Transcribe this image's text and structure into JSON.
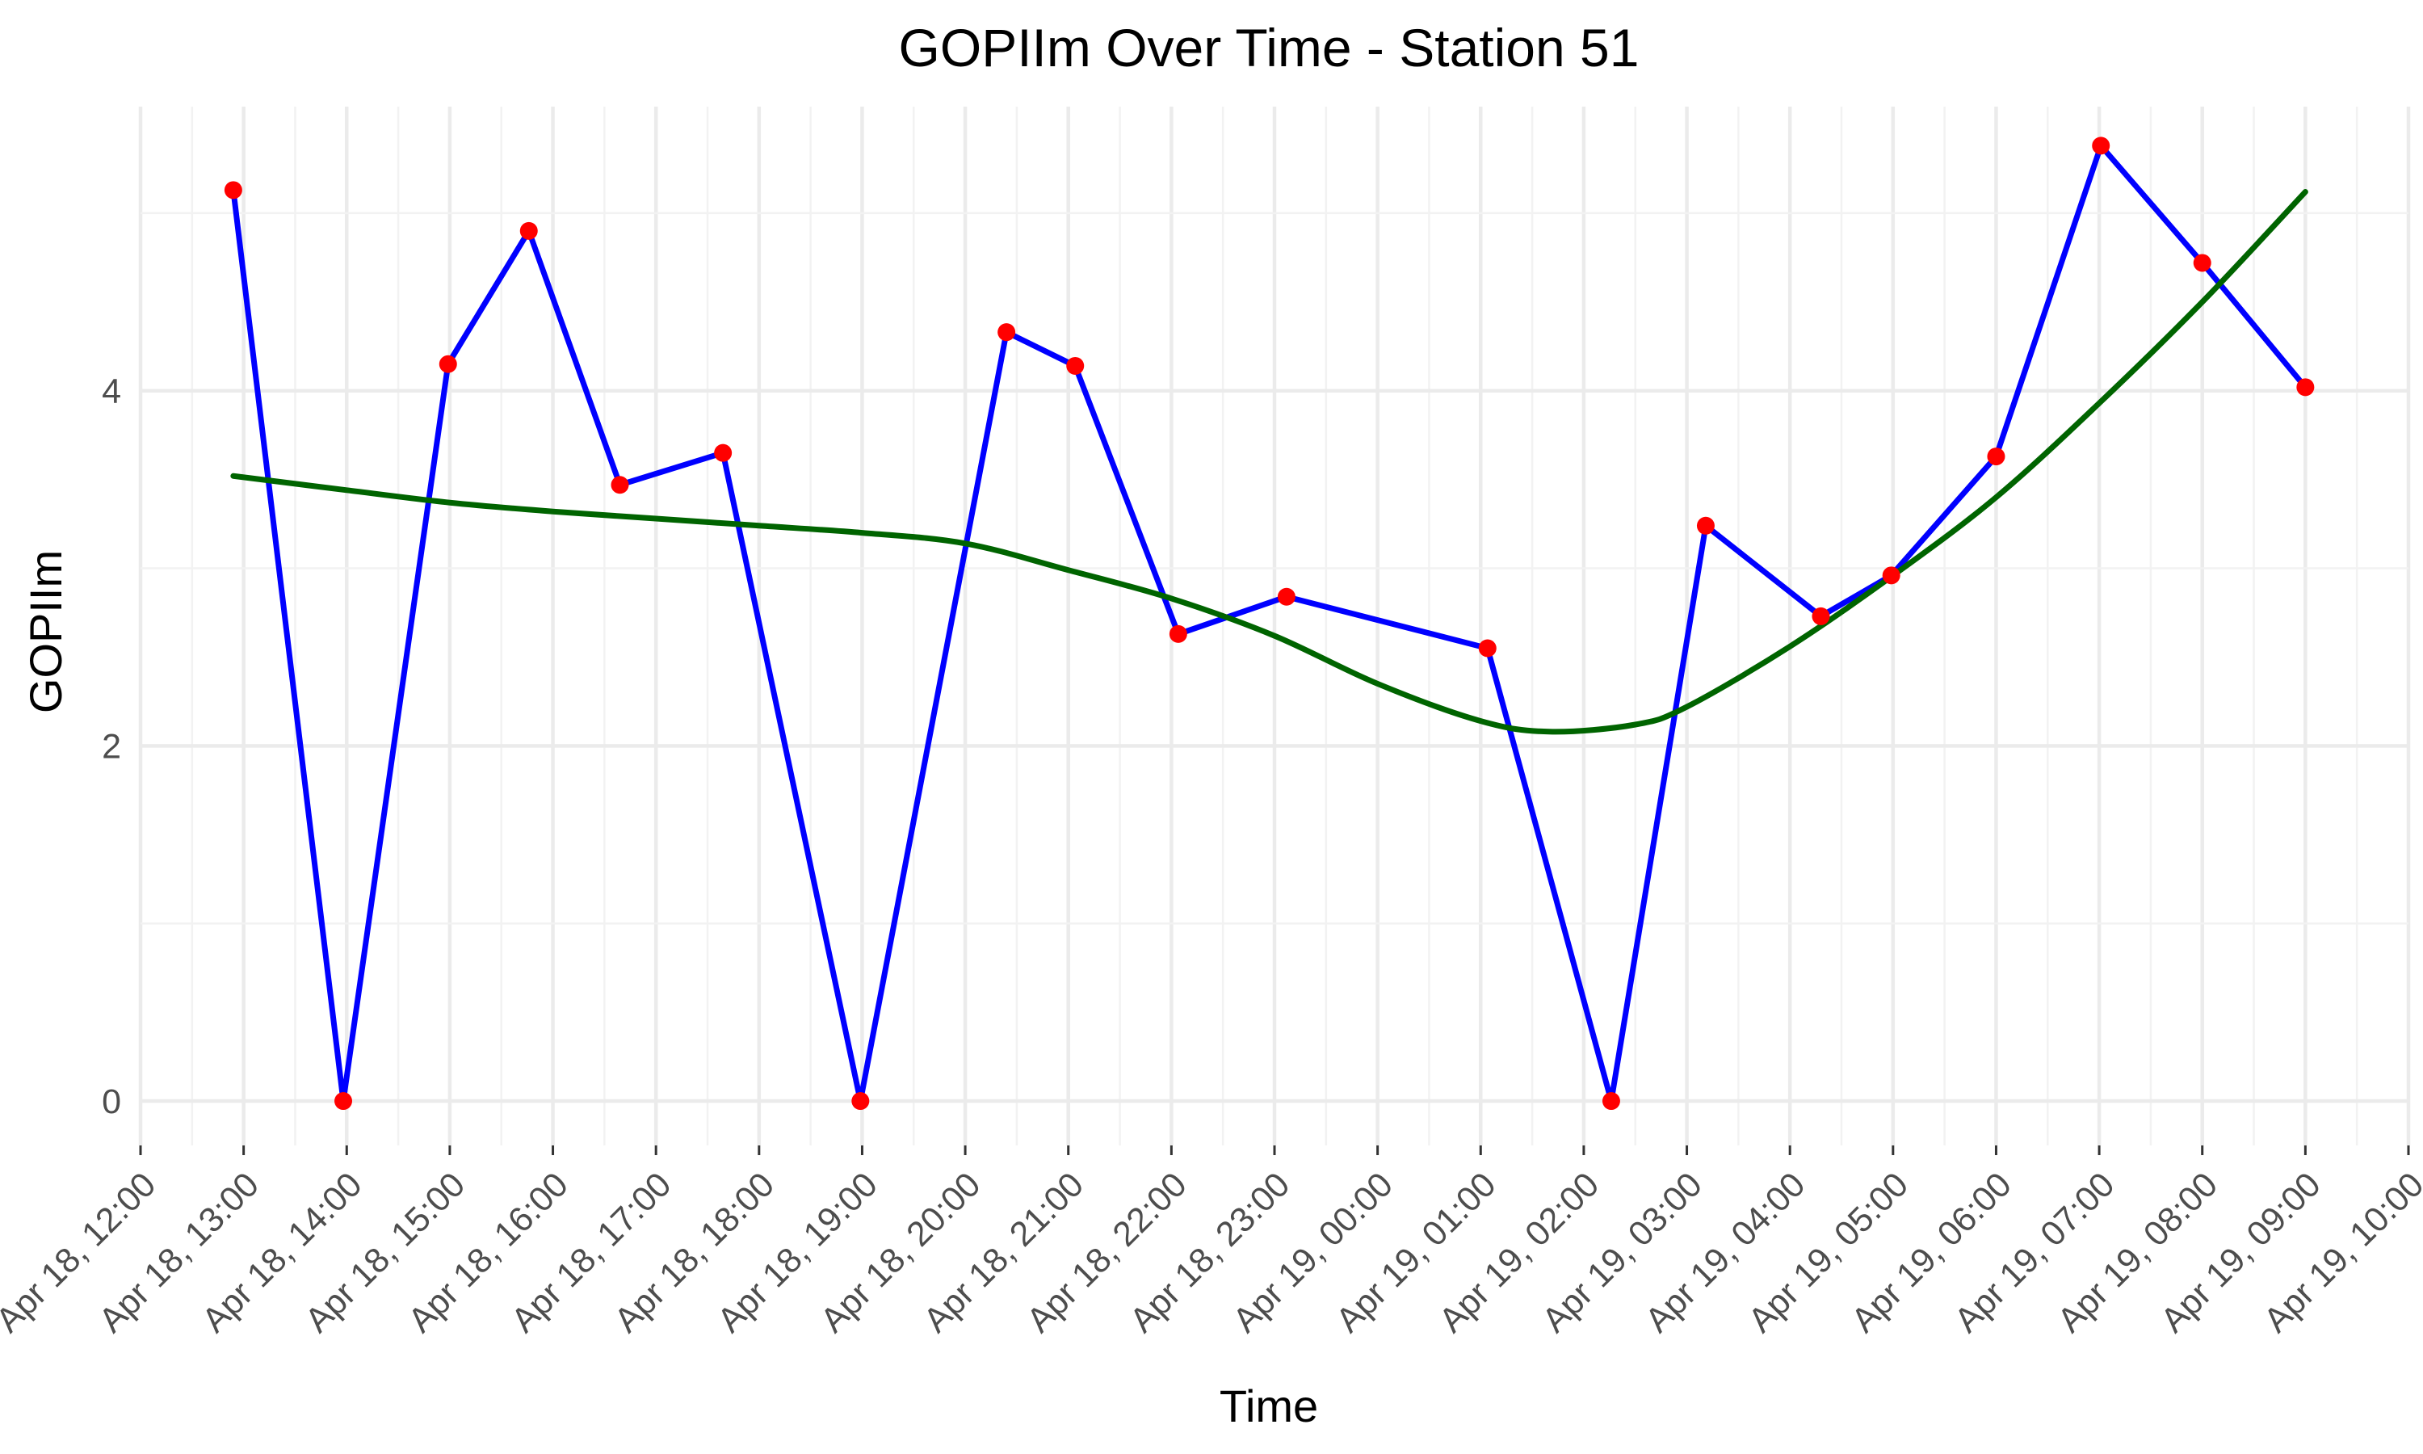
{
  "chart_data": {
    "type": "line",
    "title": "GOPIIm Over Time - Station 51",
    "xlabel": "Time",
    "ylabel": "GOPIIm",
    "x_axis_type": "datetime",
    "xlim": [
      "2024-04-18 12:00",
      "2024-04-19 10:00"
    ],
    "ylim": [
      -0.25,
      5.6
    ],
    "y_ticks": [
      0,
      2,
      4
    ],
    "x_ticks": [
      {
        "t": "2024-04-18 12:00",
        "label": "Apr 18, 12:00"
      },
      {
        "t": "2024-04-18 13:00",
        "label": "Apr 18, 13:00"
      },
      {
        "t": "2024-04-18 14:00",
        "label": "Apr 18, 14:00"
      },
      {
        "t": "2024-04-18 15:00",
        "label": "Apr 18, 15:00"
      },
      {
        "t": "2024-04-18 16:00",
        "label": "Apr 18, 16:00"
      },
      {
        "t": "2024-04-18 17:00",
        "label": "Apr 18, 17:00"
      },
      {
        "t": "2024-04-18 18:00",
        "label": "Apr 18, 18:00"
      },
      {
        "t": "2024-04-18 19:00",
        "label": "Apr 18, 19:00"
      },
      {
        "t": "2024-04-18 20:00",
        "label": "Apr 18, 20:00"
      },
      {
        "t": "2024-04-18 21:00",
        "label": "Apr 18, 21:00"
      },
      {
        "t": "2024-04-18 22:00",
        "label": "Apr 18, 22:00"
      },
      {
        "t": "2024-04-18 23:00",
        "label": "Apr 18, 23:00"
      },
      {
        "t": "2024-04-19 00:00",
        "label": "Apr 19, 00:00"
      },
      {
        "t": "2024-04-19 01:00",
        "label": "Apr 19, 01:00"
      },
      {
        "t": "2024-04-19 02:00",
        "label": "Apr 19, 02:00"
      },
      {
        "t": "2024-04-19 03:00",
        "label": "Apr 19, 03:00"
      },
      {
        "t": "2024-04-19 04:00",
        "label": "Apr 19, 04:00"
      },
      {
        "t": "2024-04-19 05:00",
        "label": "Apr 19, 05:00"
      },
      {
        "t": "2024-04-19 06:00",
        "label": "Apr 19, 06:00"
      },
      {
        "t": "2024-04-19 07:00",
        "label": "Apr 19, 07:00"
      },
      {
        "t": "2024-04-19 08:00",
        "label": "Apr 19, 08:00"
      },
      {
        "t": "2024-04-19 09:00",
        "label": "Apr 19, 09:00"
      },
      {
        "t": "2024-04-19 10:00",
        "label": "Apr 19, 10:00"
      }
    ],
    "grid": true,
    "legend": "none",
    "series": [
      {
        "kind": "line-with-points",
        "line_color": "#0000ff",
        "point_color": "#ff0000",
        "points": [
          {
            "x": "2024-04-18 12:54",
            "y": 5.13
          },
          {
            "x": "2024-04-18 13:58",
            "y": 0.0
          },
          {
            "x": "2024-04-18 14:59",
            "y": 4.15
          },
          {
            "x": "2024-04-18 15:46",
            "y": 4.9
          },
          {
            "x": "2024-04-18 16:39",
            "y": 3.47
          },
          {
            "x": "2024-04-18 17:39",
            "y": 3.65
          },
          {
            "x": "2024-04-18 18:59",
            "y": 0.0
          },
          {
            "x": "2024-04-18 20:24",
            "y": 4.33
          },
          {
            "x": "2024-04-18 21:04",
            "y": 4.14
          },
          {
            "x": "2024-04-18 22:04",
            "y": 2.63
          },
          {
            "x": "2024-04-18 23:07",
            "y": 2.84
          },
          {
            "x": "2024-04-19 01:04",
            "y": 2.55
          },
          {
            "x": "2024-04-19 02:16",
            "y": 0.0
          },
          {
            "x": "2024-04-19 03:11",
            "y": 3.24
          },
          {
            "x": "2024-04-19 04:18",
            "y": 2.73
          },
          {
            "x": "2024-04-19 04:59",
            "y": 2.96
          },
          {
            "x": "2024-04-19 06:00",
            "y": 3.63
          },
          {
            "x": "2024-04-19 07:01",
            "y": 5.38
          },
          {
            "x": "2024-04-19 08:00",
            "y": 4.72
          },
          {
            "x": "2024-04-19 09:00",
            "y": 4.02
          }
        ]
      },
      {
        "kind": "smooth-trend",
        "line_color": "#006400",
        "points": [
          {
            "x": "2024-04-18 12:54",
            "y": 3.52
          },
          {
            "x": "2024-04-18 14:00",
            "y": 3.44
          },
          {
            "x": "2024-04-18 15:00",
            "y": 3.37
          },
          {
            "x": "2024-04-18 16:00",
            "y": 3.32
          },
          {
            "x": "2024-04-18 17:00",
            "y": 3.28
          },
          {
            "x": "2024-04-18 18:00",
            "y": 3.24
          },
          {
            "x": "2024-04-18 19:00",
            "y": 3.2
          },
          {
            "x": "2024-04-18 20:00",
            "y": 3.14
          },
          {
            "x": "2024-04-18 21:00",
            "y": 2.99
          },
          {
            "x": "2024-04-18 22:00",
            "y": 2.83
          },
          {
            "x": "2024-04-18 23:00",
            "y": 2.62
          },
          {
            "x": "2024-04-19 00:00",
            "y": 2.35
          },
          {
            "x": "2024-04-19 01:00",
            "y": 2.14
          },
          {
            "x": "2024-04-19 01:40",
            "y": 2.08
          },
          {
            "x": "2024-04-19 02:30",
            "y": 2.12
          },
          {
            "x": "2024-04-19 03:00",
            "y": 2.22
          },
          {
            "x": "2024-04-19 04:00",
            "y": 2.56
          },
          {
            "x": "2024-04-19 05:00",
            "y": 2.96
          },
          {
            "x": "2024-04-19 06:00",
            "y": 3.4
          },
          {
            "x": "2024-04-19 07:00",
            "y": 3.93
          },
          {
            "x": "2024-04-19 08:00",
            "y": 4.5
          },
          {
            "x": "2024-04-19 09:00",
            "y": 5.12
          }
        ]
      }
    ]
  }
}
